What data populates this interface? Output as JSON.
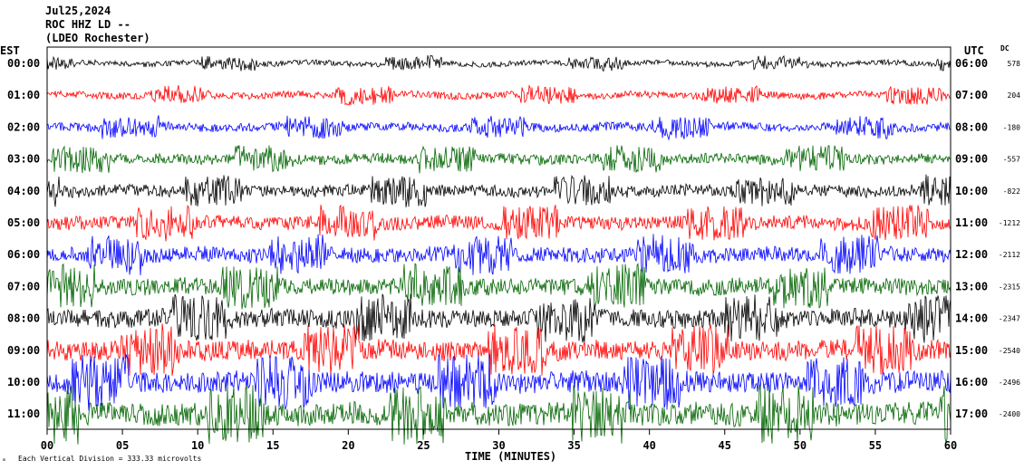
{
  "header": {
    "line1": "Jul25,2024",
    "line2": "ROC HHZ LD --",
    "line3": "(LDEO Rochester)"
  },
  "left_zone_label": "EST",
  "right_zone_label": "UTC",
  "dc_header": "DC",
  "chart_data": {
    "type": "line",
    "xlabel": "TIME (MINUTES)",
    "x_ticks": [
      "00",
      "05",
      "10",
      "15",
      "20",
      "25",
      "30",
      "35",
      "40",
      "45",
      "50",
      "55",
      "60"
    ],
    "xlim": [
      0,
      60
    ],
    "rows": [
      {
        "est": "00:00",
        "utc": "06:00",
        "dc": "578",
        "color": "#000000"
      },
      {
        "est": "01:00",
        "utc": "07:00",
        "dc": "204",
        "color": "#ff0000"
      },
      {
        "est": "02:00",
        "utc": "08:00",
        "dc": "-180",
        "color": "#0000ff"
      },
      {
        "est": "03:00",
        "utc": "09:00",
        "dc": "-557",
        "color": "#006400"
      },
      {
        "est": "04:00",
        "utc": "10:00",
        "dc": "-822",
        "color": "#000000"
      },
      {
        "est": "05:00",
        "utc": "11:00",
        "dc": "-1212",
        "color": "#ff0000"
      },
      {
        "est": "06:00",
        "utc": "12:00",
        "dc": "-2112",
        "color": "#0000ff"
      },
      {
        "est": "07:00",
        "utc": "13:00",
        "dc": "-2315",
        "color": "#006400"
      },
      {
        "est": "08:00",
        "utc": "14:00",
        "dc": "-2347",
        "color": "#000000"
      },
      {
        "est": "09:00",
        "utc": "15:00",
        "dc": "-2540",
        "color": "#ff0000"
      },
      {
        "est": "10:00",
        "utc": "16:00",
        "dc": "-2496",
        "color": "#0000ff"
      },
      {
        "est": "11:00",
        "utc": "17:00",
        "dc": "-2400",
        "color": "#006400"
      }
    ]
  },
  "footer": {
    "scale_text": "Each Vertical Division = 333.33 microvolts"
  }
}
